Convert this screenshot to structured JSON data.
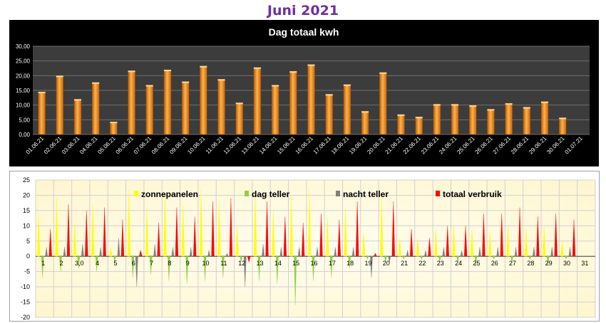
{
  "page": {
    "title": "Juni 2021"
  },
  "colors": {
    "bar_orange": "#f08a1c",
    "sun": "#ffff00",
    "day": "#8fd13f",
    "night": "#7f7f7f",
    "total": "#ff0000",
    "plot1_bg": "#3c3c3c",
    "plot2_bg": "#fffbe0",
    "title_purple": "#7030a0"
  },
  "chart_data": [
    {
      "type": "bar",
      "title": "Dag totaal kwh",
      "categories": [
        "01.06.21",
        "02.06.21",
        "03.06.21",
        "04.06.21",
        "05.06.21",
        "06.06.21",
        "07.06.21",
        "08.06.21",
        "09.06.21",
        "10.06.21",
        "11.06.21",
        "12.06.21",
        "13.06.21",
        "14.06.21",
        "15.06.21",
        "16.06.21",
        "17.06.21",
        "18.06.21",
        "19.06.21",
        "20.06.21",
        "21.06.21",
        "22.06.21",
        "23.06.21",
        "24.06.21",
        "25.06.21",
        "26.06.21",
        "27.06.21",
        "28.06.21",
        "29.06.21",
        "30.06.21",
        "01.07.21"
      ],
      "values": [
        14.5,
        20.0,
        12.0,
        17.7,
        4.3,
        21.7,
        16.8,
        22.0,
        18.0,
        23.3,
        18.8,
        10.8,
        22.8,
        16.8,
        21.5,
        23.8,
        13.7,
        17.0,
        7.9,
        21.1,
        6.8,
        6.0,
        10.3,
        10.3,
        9.9,
        8.6,
        10.6,
        9.3,
        11.2,
        5.7,
        null
      ],
      "ylim": [
        0,
        30
      ],
      "yticks": [
        "0,00",
        "5,00",
        "10,00",
        "15,00",
        "20,00",
        "25,00",
        "30,00"
      ],
      "grid": true
    },
    {
      "type": "bar",
      "legend": [
        "zonnepanelen",
        "dag teller",
        "nacht teller",
        "totaal verbruik"
      ],
      "legend_position": "top",
      "ylim": [
        -20,
        25
      ],
      "yticks": [
        "-20",
        "-15",
        "-10",
        "-5",
        "0",
        "5",
        "10",
        "15",
        "20",
        "25"
      ],
      "categories": [
        "1",
        "2",
        "3,0",
        "4",
        "5",
        "6",
        "7",
        "8",
        "9",
        "10",
        "11",
        "12",
        "13",
        "14",
        "15",
        "16",
        "17",
        "18",
        "19",
        "20",
        "21",
        "22",
        "23",
        "24",
        "25",
        "26",
        "27",
        "28",
        "29",
        "30",
        "31"
      ],
      "series": [
        {
          "name": "zonnepanelen",
          "values": [
            14,
            19,
            11,
            17,
            3,
            22,
            16,
            21,
            17,
            22,
            18,
            10,
            21,
            15,
            20,
            22,
            13,
            16,
            8,
            20,
            6,
            6,
            9,
            10,
            9,
            8,
            10,
            9,
            10,
            5,
            null
          ]
        },
        {
          "name": "dag teller",
          "values": [
            -7,
            -5,
            -4,
            -5,
            -2,
            -7,
            -6,
            -8,
            -9,
            -8,
            -7,
            -2,
            -8,
            -9,
            -16,
            -8,
            -7,
            -4,
            -1,
            -2,
            -1,
            -1,
            -2,
            -2,
            -3,
            -1,
            -2,
            -1,
            -3,
            -1,
            null
          ]
        },
        {
          "name": "nacht teller",
          "values": [
            3,
            3,
            4,
            3,
            6,
            -10,
            4,
            3,
            3,
            2,
            1,
            -10,
            4,
            3,
            3,
            3,
            3,
            3,
            -7,
            -2,
            2,
            2,
            3,
            2,
            3,
            3,
            3,
            3,
            3,
            3,
            null
          ]
        },
        {
          "name": "totaal verbruik",
          "values": [
            9,
            17,
            15,
            16,
            12,
            2,
            11,
            16,
            13,
            18,
            19,
            -2,
            18,
            13,
            11,
            14,
            12,
            18,
            1,
            18,
            9,
            6,
            10,
            10,
            14,
            14,
            16,
            13,
            14,
            12,
            null
          ]
        }
      ],
      "grid": true
    }
  ]
}
